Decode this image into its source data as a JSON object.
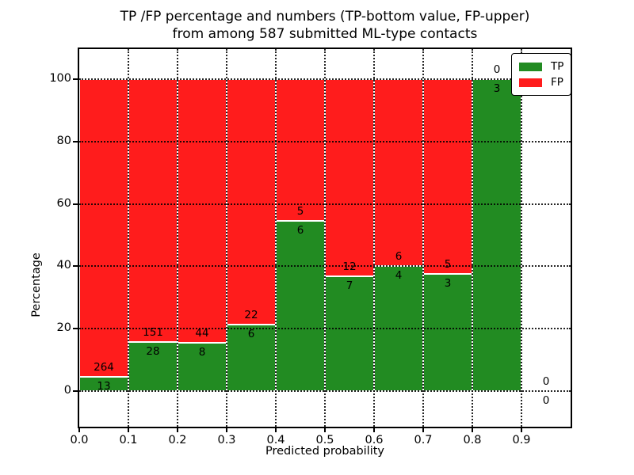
{
  "figure": {
    "title_line1": "TP /FP percentage and numbers (TP-bottom value, FP-upper)",
    "title_line2": "from among 587 submitted ML-type contacts"
  },
  "chart_data": {
    "type": "bar",
    "stacked": true,
    "normalized_to_percent": true,
    "title": "TP /FP percentage and numbers (TP-bottom value, FP-upper) from among 587 submitted ML-type contacts",
    "xlabel": "Predicted probability",
    "ylabel": "Percentage",
    "xlim": [
      0.0,
      1.0
    ],
    "ylim": [
      -11.4,
      109.6
    ],
    "grid": true,
    "legend_position": "upper right",
    "xticks": [
      {
        "v": 0.0,
        "label": "0.0"
      },
      {
        "v": 0.1,
        "label": "0.1"
      },
      {
        "v": 0.2,
        "label": "0.2"
      },
      {
        "v": 0.3,
        "label": "0.3"
      },
      {
        "v": 0.4,
        "label": "0.4"
      },
      {
        "v": 0.5,
        "label": "0.5"
      },
      {
        "v": 0.6,
        "label": "0.6"
      },
      {
        "v": 0.7,
        "label": "0.7"
      },
      {
        "v": 0.8,
        "label": "0.8"
      },
      {
        "v": 0.9,
        "label": "0.9"
      }
    ],
    "yticks": [
      0,
      20,
      40,
      60,
      80,
      100
    ],
    "bins": [
      {
        "x0": 0.0,
        "x1": 0.1,
        "tp": 13,
        "fp": 264
      },
      {
        "x0": 0.1,
        "x1": 0.2,
        "tp": 28,
        "fp": 151
      },
      {
        "x0": 0.2,
        "x1": 0.3,
        "tp": 8,
        "fp": 44
      },
      {
        "x0": 0.3,
        "x1": 0.4,
        "tp": 6,
        "fp": 22
      },
      {
        "x0": 0.4,
        "x1": 0.5,
        "tp": 6,
        "fp": 5
      },
      {
        "x0": 0.5,
        "x1": 0.6,
        "tp": 7,
        "fp": 12
      },
      {
        "x0": 0.6,
        "x1": 0.7,
        "tp": 4,
        "fp": 6
      },
      {
        "x0": 0.7,
        "x1": 0.8,
        "tp": 3,
        "fp": 5
      },
      {
        "x0": 0.8,
        "x1": 0.9,
        "tp": 3,
        "fp": 0
      },
      {
        "x0": 0.9,
        "x1": 1.0,
        "tp": 0,
        "fp": 0
      }
    ],
    "legend": [
      {
        "label": "TP",
        "color": "#228b22"
      },
      {
        "label": "FP",
        "color": "#ff1c1c"
      }
    ],
    "colors": {
      "tp": "#228b22",
      "fp": "#ff1c1c",
      "bar_edge": "#ffffff",
      "grid": "#000000",
      "spine": "#000000",
      "background": "#ffffff"
    }
  }
}
